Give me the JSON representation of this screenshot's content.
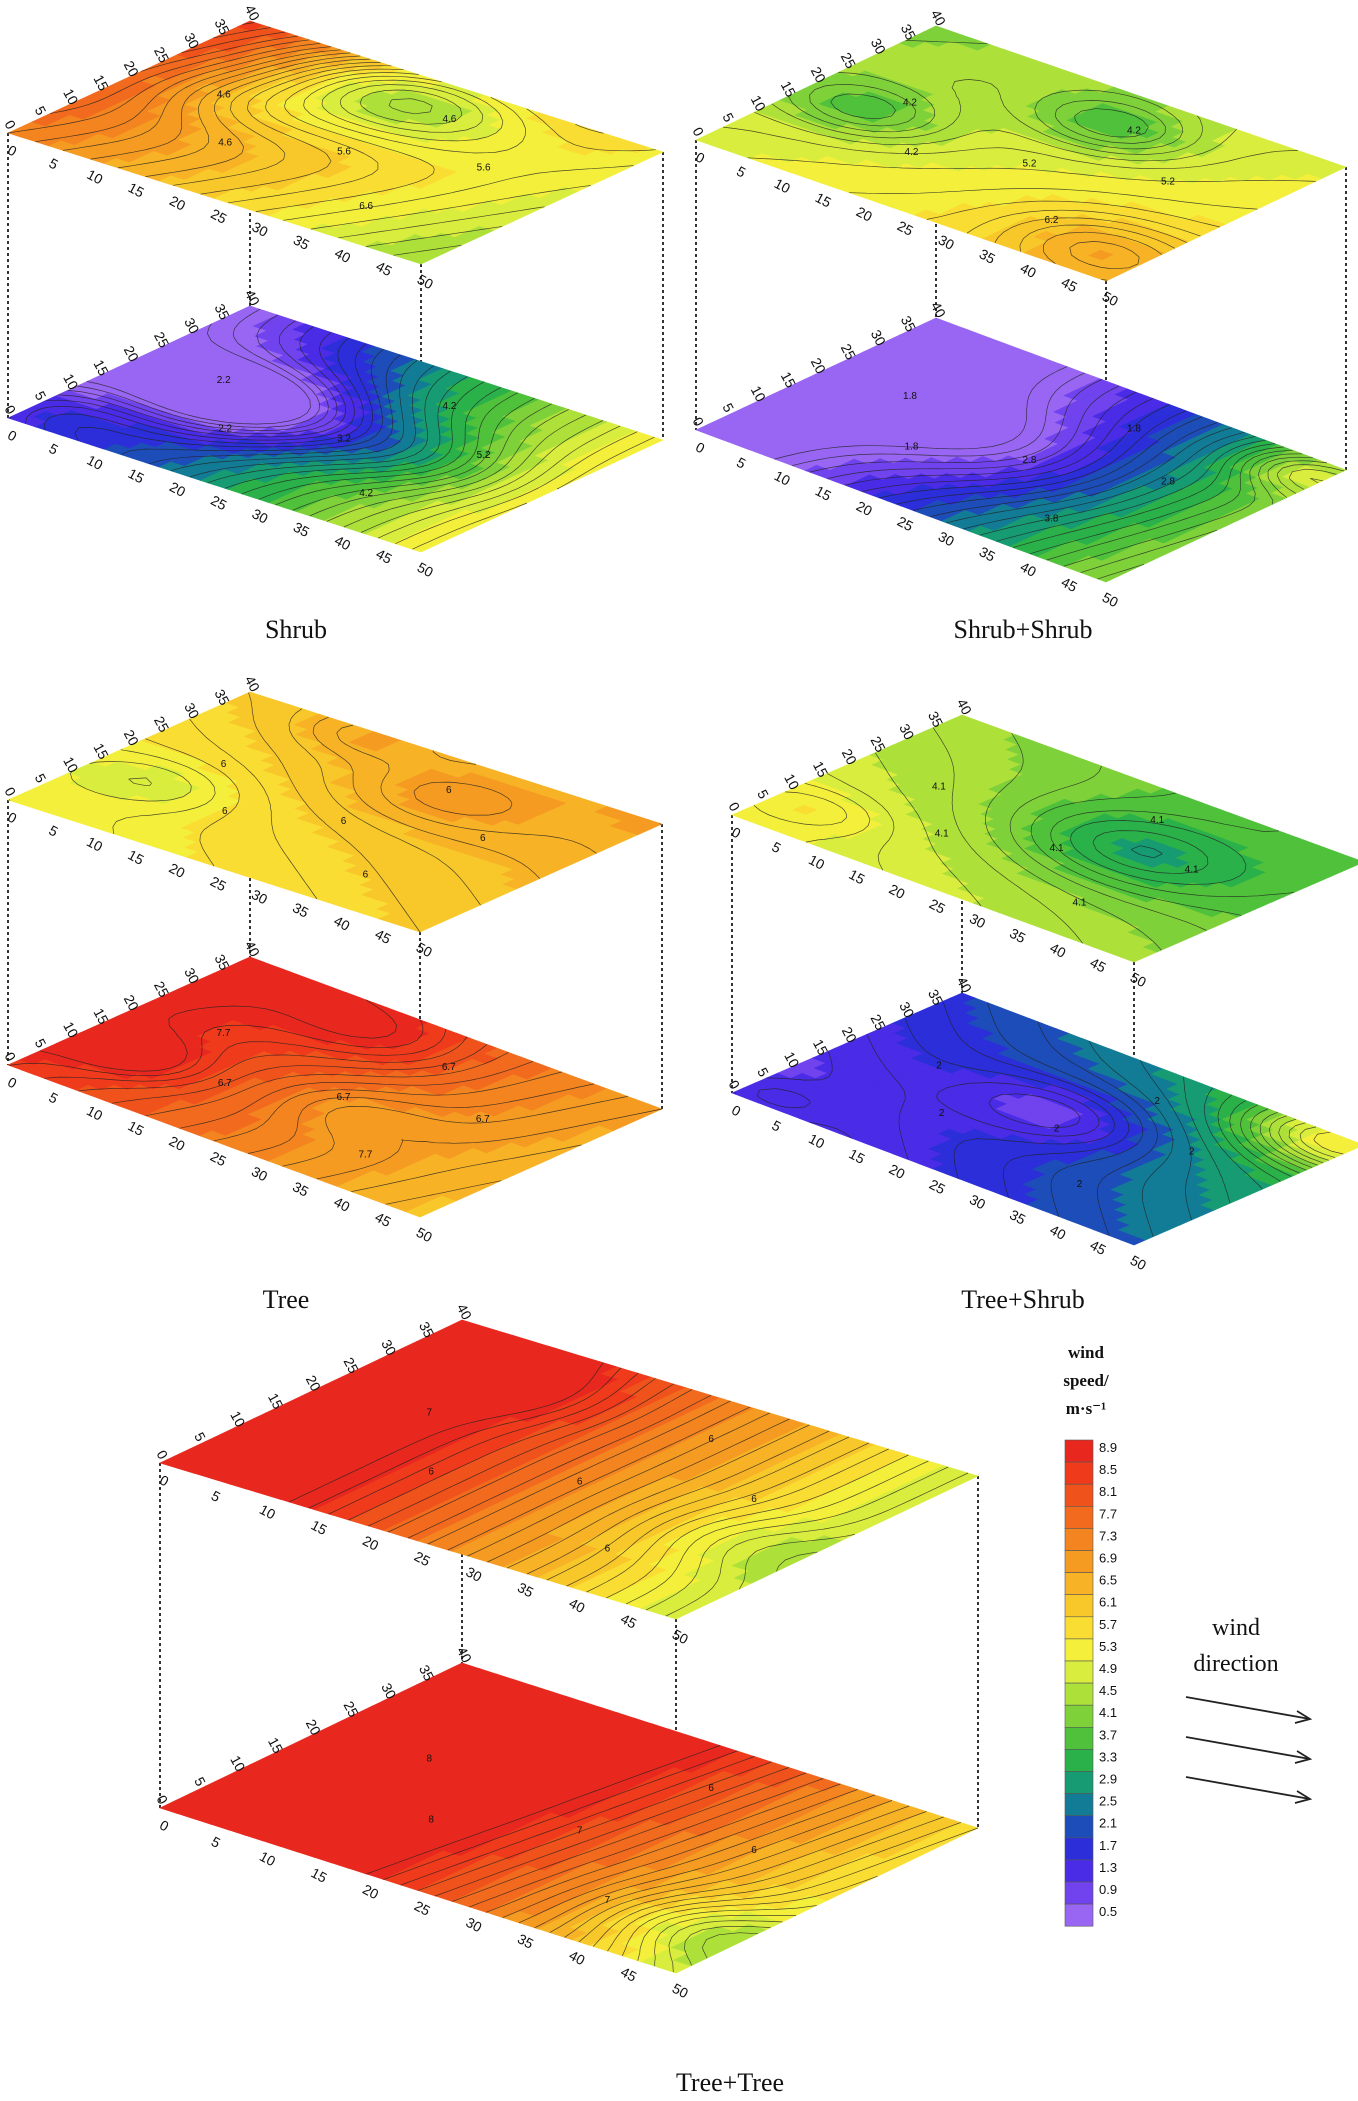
{
  "chart_data": [
    {
      "type": "heatmap",
      "title": "Shrub",
      "x_ticks": [
        "0",
        "5",
        "10",
        "15",
        "20",
        "25",
        "30",
        "35",
        "40",
        "45",
        "50"
      ],
      "y_ticks": [
        "0",
        "5",
        "10",
        "15",
        "20",
        "25",
        "30",
        "35",
        "40"
      ],
      "zlim": [
        0.5,
        8.9
      ],
      "layers": [
        {
          "name": "upper",
          "contour_labels": [
            "4.6",
            "4.6",
            "5.6",
            "6.6",
            "5.6",
            "4.6"
          ],
          "field": {
            "base": 6.4,
            "gx": -1.5,
            "gy": 0.6,
            "blobs": [
              [
                0.45,
                0.85,
                -2.4,
                0.2
              ],
              [
                0.25,
                0.55,
                -0.8,
                0.15
              ]
            ]
          }
        },
        {
          "name": "lower",
          "contour_labels": [
            "2.2",
            "2.2",
            "3.2",
            "4.2",
            "5.2",
            "4.2"
          ],
          "field": {
            "base": 3.0,
            "gx": 2.4,
            "gy": 0.0,
            "blobs": [
              [
                0.3,
                0.5,
                -2.4,
                0.18
              ],
              [
                0.05,
                0.1,
                0.9,
                0.15
              ],
              [
                0.7,
                0.5,
                -0.8,
                0.15
              ]
            ]
          }
        }
      ]
    },
    {
      "type": "heatmap",
      "title": "Shrub+Shrub",
      "x_ticks": [
        "0",
        "5",
        "10",
        "15",
        "20",
        "25",
        "30",
        "35",
        "40",
        "45",
        "50"
      ],
      "y_ticks": [
        "0",
        "5",
        "10",
        "15",
        "20",
        "25",
        "30",
        "35",
        "40"
      ],
      "zlim": [
        0.5,
        8.9
      ],
      "layers": [
        {
          "name": "upper",
          "contour_labels": [
            "4.2",
            "4.2",
            "5.2",
            "6.2",
            "5.2",
            "4.2"
          ],
          "field": {
            "base": 5.0,
            "gx": 0.4,
            "gy": -0.4,
            "blobs": [
              [
                0.15,
                0.45,
                -1.0,
                0.12
              ],
              [
                0.55,
                0.8,
                -1.1,
                0.12
              ],
              [
                0.9,
                0.15,
                1.0,
                0.15
              ]
            ]
          }
        },
        {
          "name": "lower",
          "contour_labels": [
            "1.8",
            "1.8",
            "2.8",
            "3.8",
            "2.8",
            "1.8"
          ],
          "field": {
            "base": 1.7,
            "gx": 2.4,
            "gy": -0.3,
            "blobs": [
              [
                0.45,
                0.5,
                -1.0,
                0.2
              ],
              [
                0.95,
                0.9,
                1.2,
                0.1
              ]
            ]
          }
        }
      ]
    },
    {
      "type": "heatmap",
      "title": "Tree",
      "x_ticks": [
        "0",
        "5",
        "10",
        "15",
        "20",
        "25",
        "30",
        "35",
        "40",
        "45",
        "50"
      ],
      "y_ticks": [
        "0",
        "5",
        "10",
        "15",
        "20",
        "25",
        "30",
        "35",
        "40"
      ],
      "zlim": [
        0.5,
        8.9
      ],
      "layers": [
        {
          "name": "upper",
          "contour_labels": [
            "6",
            "6",
            "6",
            "6",
            "6",
            "6"
          ],
          "field": {
            "base": 5.9,
            "gx": 0.4,
            "gy": 0.4,
            "blobs": [
              [
                0.15,
                0.35,
                -0.6,
                0.12
              ],
              [
                0.6,
                0.75,
                0.6,
                0.15
              ],
              [
                0.3,
                0.95,
                0.5,
                0.1
              ]
            ]
          }
        },
        {
          "name": "lower",
          "contour_labels": [
            "7.7",
            "6.7",
            "6.7",
            "7.7",
            "6.7",
            "6.7"
          ],
          "field": {
            "base": 7.6,
            "gx": -1.2,
            "gy": 0.3,
            "blobs": [
              [
                0.12,
                0.3,
                1.0,
                0.1
              ],
              [
                0.4,
                0.85,
                0.7,
                0.14
              ],
              [
                0.6,
                0.4,
                -0.5,
                0.12
              ]
            ]
          }
        }
      ]
    },
    {
      "type": "heatmap",
      "title": "Tree+Shrub",
      "x_ticks": [
        "0",
        "5",
        "10",
        "15",
        "20",
        "25",
        "30",
        "35",
        "40",
        "45",
        "50"
      ],
      "y_ticks": [
        "0",
        "5",
        "10",
        "15",
        "20",
        "25",
        "30",
        "35",
        "40"
      ],
      "zlim": [
        0.5,
        8.9
      ],
      "layers": [
        {
          "name": "upper",
          "contour_labels": [
            "4.1",
            "4.1",
            "4.1",
            "4.1",
            "4.1",
            "4.1"
          ],
          "field": {
            "base": 4.4,
            "gx": -0.4,
            "gy": -0.4,
            "blobs": [
              [
                0.65,
                0.6,
                -1.1,
                0.18
              ],
              [
                0.1,
                0.2,
                0.5,
                0.1
              ]
            ]
          }
        },
        {
          "name": "lower",
          "contour_labels": [
            "2",
            "2",
            "2",
            "2",
            "2",
            "2"
          ],
          "field": {
            "base": 2.2,
            "gx": 0.8,
            "gy": 0.6,
            "blobs": [
              [
                0.5,
                0.55,
                -1.1,
                0.15
              ],
              [
                0.95,
                0.95,
                1.8,
                0.14
              ],
              [
                0.05,
                0.05,
                0.6,
                0.1
              ]
            ]
          }
        }
      ]
    },
    {
      "type": "heatmap",
      "title": "Tree+Tree",
      "x_ticks": [
        "0",
        "5",
        "10",
        "15",
        "20",
        "25",
        "30",
        "35",
        "40",
        "45",
        "50"
      ],
      "y_ticks": [
        "0",
        "5",
        "10",
        "15",
        "20",
        "25",
        "30",
        "35",
        "40"
      ],
      "zlim": [
        0.5,
        8.9
      ],
      "layers": [
        {
          "name": "upper",
          "contour_labels": [
            "7",
            "6",
            "6",
            "6",
            "6",
            "6"
          ],
          "field": {
            "base": 7.4,
            "gx": -2.6,
            "gy": 0.0,
            "blobs": [
              [
                0.2,
                0.8,
                0.6,
                0.12
              ],
              [
                0.9,
                0.4,
                -0.5,
                0.12
              ]
            ]
          }
        },
        {
          "name": "lower",
          "contour_labels": [
            "8",
            "8",
            "7",
            "7",
            "6",
            "6"
          ],
          "field": {
            "base": 8.4,
            "gx": -3.0,
            "gy": 0.3,
            "blobs": [
              [
                0.1,
                0.5,
                0.6,
                0.12
              ],
              [
                0.95,
                0.2,
                -1.0,
                0.12
              ]
            ]
          }
        }
      ]
    }
  ],
  "legend": {
    "title_lines": [
      "wind",
      "speed/",
      "m·s⁻¹"
    ],
    "levels": [
      "8.9",
      "8.5",
      "8.1",
      "7.7",
      "7.3",
      "6.9",
      "6.5",
      "6.1",
      "5.7",
      "5.3",
      "4.9",
      "4.5",
      "4.1",
      "3.7",
      "3.3",
      "2.9",
      "2.5",
      "2.1",
      "1.7",
      "1.3",
      "0.9",
      "0.5"
    ],
    "colors": [
      "#e8281e",
      "#ef3a1c",
      "#f0521c",
      "#f26a1e",
      "#f3841f",
      "#f59b22",
      "#f7b226",
      "#f8c82b",
      "#fadd33",
      "#f3ef3b",
      "#d8ed3d",
      "#aee03a",
      "#7fd13a",
      "#4fc13a",
      "#2ab14a",
      "#169b73",
      "#127c96",
      "#1d4db8",
      "#2b2ed9",
      "#4a2be6",
      "#7043ee",
      "#9866f2"
    ]
  },
  "wind": {
    "label_lines": [
      "wind",
      "direction"
    ]
  }
}
